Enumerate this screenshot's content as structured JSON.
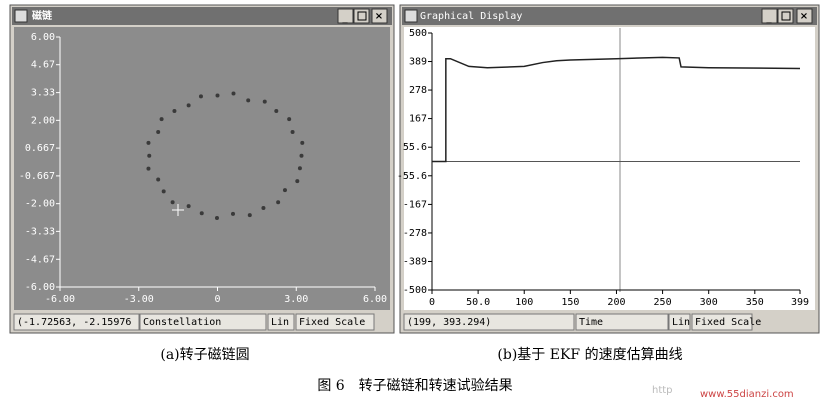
{
  "windows": [
    {
      "title": "磁链",
      "status": [
        "(-1.72563, -2.15976",
        "Constellation",
        "Lin",
        "Fixed Scale"
      ]
    },
    {
      "title": "Graphical Display",
      "status": [
        "(199, 393.294)",
        "Time",
        "Lin",
        "Fixed Scale"
      ]
    }
  ],
  "chart_data": [
    {
      "type": "scatter",
      "x": [
        3.2,
        3.23,
        2.86,
        2.73,
        2.24,
        1.8,
        1.17,
        0.61,
        0.0,
        -0.63,
        -1.1,
        -1.64,
        -2.13,
        -2.26,
        -2.63,
        -2.6,
        -2.63,
        -2.26,
        -2.05,
        -1.71,
        -1.1,
        -0.6,
        -0.02,
        0.59,
        1.23,
        1.75,
        2.31,
        2.57,
        3.04,
        3.14
      ],
      "values": [
        0.3,
        0.92,
        1.44,
        2.06,
        2.45,
        2.9,
        2.96,
        3.29,
        3.19,
        3.15,
        2.72,
        2.45,
        2.06,
        1.44,
        0.92,
        0.3,
        -0.32,
        -0.84,
        -1.41,
        -1.93,
        -2.12,
        -2.46,
        -2.69,
        -2.49,
        -2.55,
        -2.21,
        -1.93,
        -1.35,
        -0.92,
        -0.3
      ],
      "color": "#3a3a3a",
      "xlim": [
        -6,
        6
      ],
      "ylim": [
        -6,
        6
      ],
      "xticks": [
        {
          "value": -6,
          "label": "-6.00"
        },
        {
          "value": -3,
          "label": "-3.00"
        },
        0,
        {
          "value": 3,
          "label": "3.00"
        },
        {
          "value": 6,
          "label": "6.00"
        }
      ],
      "yticks": [
        {
          "value": 6,
          "label": "6.00"
        },
        {
          "value": 4.67,
          "label": "4.67"
        },
        {
          "value": 3.33,
          "label": "3.33"
        },
        {
          "value": 2,
          "label": "2.00"
        },
        0.667,
        -0.667,
        {
          "value": -2,
          "label": "-2.00"
        },
        {
          "value": -3.33,
          "label": "-3.33"
        },
        {
          "value": -4.67,
          "label": "-4.67"
        },
        {
          "value": -6,
          "label": "-6.00"
        }
      ]
    },
    {
      "type": "line",
      "x": [
        0,
        15,
        15,
        20,
        40,
        60,
        100,
        120,
        135,
        150,
        200,
        250,
        268,
        270,
        300,
        399
      ],
      "values": [
        0,
        0,
        400,
        400,
        370,
        365,
        370,
        385,
        392,
        395,
        400,
        405,
        403,
        368,
        365,
        362
      ],
      "color": "#222222",
      "xlim": [
        0,
        399
      ],
      "ylim": [
        -500,
        500
      ],
      "xticks": [
        0,
        {
          "value": 50,
          "label": "50.0"
        },
        100,
        150,
        200,
        250,
        300,
        350,
        399
      ],
      "yticks": [
        500,
        389,
        278,
        167,
        55.6,
        -55.6,
        -167,
        -278,
        -389,
        -500
      ]
    }
  ],
  "captions": [
    "(a)转子磁链圆",
    "(b)基于 EKF 的速度估算曲线",
    "图 6　转子磁链和转速试验结果"
  ],
  "watermark": [
    "http",
    "www.55dianzi.com"
  ]
}
